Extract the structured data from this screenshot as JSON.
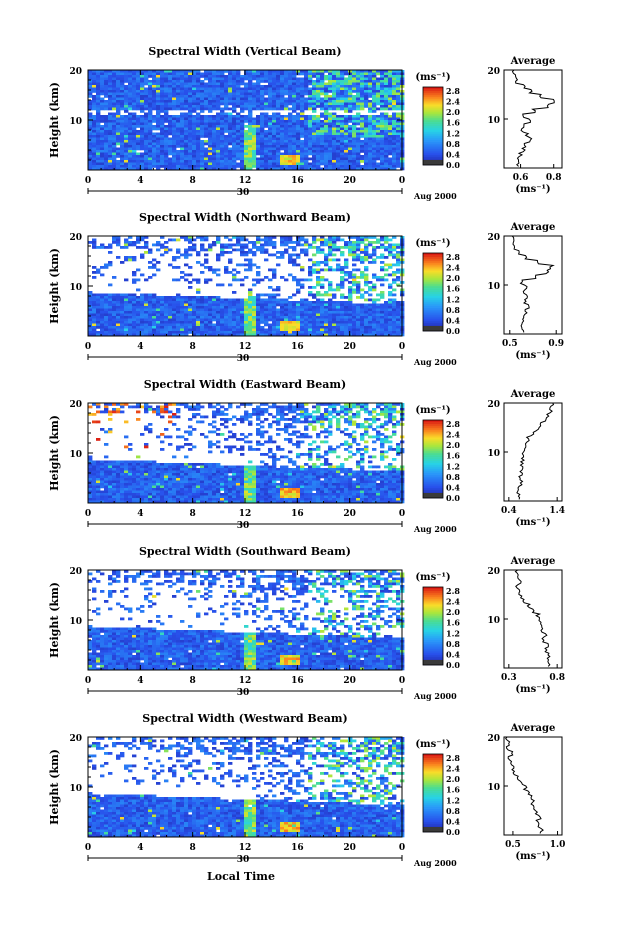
{
  "common": {
    "ylabel": "Height (km)",
    "unit_label": "(ms⁻¹)",
    "avg_title": "Average",
    "x_ticks": [
      "0",
      "4",
      "8",
      "12",
      "16",
      "20",
      "0"
    ],
    "day_label": "30",
    "month_label": "Aug 2000",
    "xlabel": "Local Time",
    "height_ticks": [
      "20",
      "10"
    ],
    "colorbar_ticks": [
      "2.8",
      "2.4",
      "2.0",
      "1.6",
      "1.2",
      "0.8",
      "0.4",
      "0.0"
    ],
    "colors": {
      "low": "#1a1aa0",
      "mid": "#2d6cf0",
      "high": "#e02010",
      "cap": "#3a3a3a"
    }
  },
  "chart_data": [
    {
      "type": "heatmap",
      "title": "Spectral Width (Vertical Beam)",
      "ylim": [
        0,
        20
      ],
      "xlim": [
        0,
        24
      ],
      "avg_ticks": [
        "0.6",
        "0.8"
      ],
      "avg_xlim": [
        0.5,
        0.85
      ],
      "avg_profile": [
        [
          1,
          0.58
        ],
        [
          2,
          0.59
        ],
        [
          3,
          0.6
        ],
        [
          4,
          0.62
        ],
        [
          5,
          0.63
        ],
        [
          6,
          0.66
        ],
        [
          7,
          0.64
        ],
        [
          8,
          0.61
        ],
        [
          9,
          0.63
        ],
        [
          10,
          0.66
        ],
        [
          11,
          0.62
        ],
        [
          12,
          0.68
        ],
        [
          13,
          0.76
        ],
        [
          14,
          0.8
        ],
        [
          15,
          0.72
        ],
        [
          16,
          0.66
        ],
        [
          17,
          0.62
        ],
        [
          18,
          0.58
        ],
        [
          19,
          0.57
        ],
        [
          20,
          0.56
        ]
      ]
    },
    {
      "type": "heatmap",
      "title": "Spectral Width (Northward Beam)",
      "ylim": [
        0,
        20
      ],
      "xlim": [
        0,
        24
      ],
      "avg_ticks": [
        "0.5",
        "0.9"
      ],
      "avg_xlim": [
        0.45,
        0.95
      ],
      "avg_profile": [
        [
          1,
          0.62
        ],
        [
          2,
          0.6
        ],
        [
          3,
          0.61
        ],
        [
          4,
          0.63
        ],
        [
          5,
          0.64
        ],
        [
          6,
          0.66
        ],
        [
          7,
          0.63
        ],
        [
          8,
          0.65
        ],
        [
          9,
          0.62
        ],
        [
          10,
          0.64
        ],
        [
          11,
          0.6
        ],
        [
          12,
          0.72
        ],
        [
          13,
          0.82
        ],
        [
          14,
          0.86
        ],
        [
          15,
          0.74
        ],
        [
          16,
          0.64
        ],
        [
          17,
          0.58
        ],
        [
          18,
          0.54
        ],
        [
          19,
          0.52
        ],
        [
          20,
          0.52
        ]
      ]
    },
    {
      "type": "heatmap",
      "title": "Spectral Width (Eastward Beam)",
      "ylim": [
        0,
        20
      ],
      "xlim": [
        0,
        24
      ],
      "avg_ticks": [
        "0.4",
        "1.4"
      ],
      "avg_xlim": [
        0.3,
        1.5
      ],
      "avg_profile": [
        [
          1,
          0.62
        ],
        [
          2,
          0.6
        ],
        [
          3,
          0.62
        ],
        [
          4,
          0.65
        ],
        [
          5,
          0.64
        ],
        [
          6,
          0.66
        ],
        [
          7,
          0.68
        ],
        [
          8,
          0.66
        ],
        [
          9,
          0.7
        ],
        [
          10,
          0.68
        ],
        [
          11,
          0.72
        ],
        [
          12,
          0.74
        ],
        [
          13,
          0.8
        ],
        [
          14,
          0.88
        ],
        [
          15,
          1.0
        ],
        [
          16,
          1.08
        ],
        [
          17,
          1.15
        ],
        [
          18,
          1.22
        ],
        [
          19,
          1.28
        ],
        [
          20,
          1.3
        ]
      ]
    },
    {
      "type": "heatmap",
      "title": "Spectral Width (Southward Beam)",
      "ylim": [
        0,
        20
      ],
      "xlim": [
        0,
        24
      ],
      "avg_ticks": [
        "0.3",
        "0.8"
      ],
      "avg_xlim": [
        0.25,
        0.85
      ],
      "avg_profile": [
        [
          1,
          0.72
        ],
        [
          2,
          0.7
        ],
        [
          3,
          0.72
        ],
        [
          4,
          0.68
        ],
        [
          5,
          0.7
        ],
        [
          6,
          0.66
        ],
        [
          7,
          0.68
        ],
        [
          8,
          0.65
        ],
        [
          9,
          0.64
        ],
        [
          10,
          0.62
        ],
        [
          11,
          0.6
        ],
        [
          12,
          0.56
        ],
        [
          13,
          0.5
        ],
        [
          14,
          0.46
        ],
        [
          15,
          0.42
        ],
        [
          16,
          0.4
        ],
        [
          17,
          0.38
        ],
        [
          18,
          0.42
        ],
        [
          19,
          0.4
        ],
        [
          20,
          0.38
        ]
      ]
    },
    {
      "type": "heatmap",
      "title": "Spectral Width (Westward Beam)",
      "ylim": [
        0,
        20
      ],
      "xlim": [
        0,
        24
      ],
      "avg_ticks": [
        "0.5",
        "1.0"
      ],
      "avg_xlim": [
        0.4,
        1.05
      ],
      "avg_profile": [
        [
          1,
          0.82
        ],
        [
          2,
          0.8
        ],
        [
          3,
          0.78
        ],
        [
          4,
          0.8
        ],
        [
          5,
          0.76
        ],
        [
          6,
          0.74
        ],
        [
          7,
          0.72
        ],
        [
          8,
          0.7
        ],
        [
          9,
          0.68
        ],
        [
          10,
          0.64
        ],
        [
          11,
          0.6
        ],
        [
          12,
          0.56
        ],
        [
          13,
          0.52
        ],
        [
          14,
          0.5
        ],
        [
          15,
          0.48
        ],
        [
          16,
          0.46
        ],
        [
          17,
          0.48
        ],
        [
          18,
          0.44
        ],
        [
          19,
          0.46
        ],
        [
          20,
          0.42
        ]
      ]
    }
  ]
}
